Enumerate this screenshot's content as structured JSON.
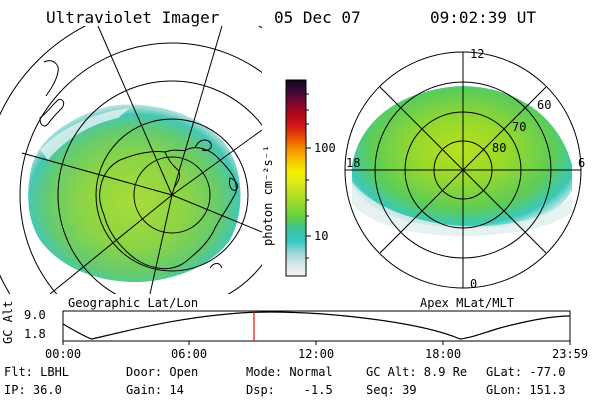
{
  "header": {
    "instrument": "Ultraviolet Imager",
    "date": "05 Dec 07",
    "time": "09:02:39 UT"
  },
  "left_map": {
    "caption": "Geographic Lat/Lon"
  },
  "right_map": {
    "caption": "Apex MLat/MLT",
    "mlt_labels": {
      "top": "12",
      "left": "18",
      "right": "6",
      "bottom": "0"
    },
    "lat_labels": [
      "60",
      "70",
      "80"
    ]
  },
  "colorbar": {
    "unit_label": "photon cm⁻²s⁻¹",
    "ticks": [
      "100",
      "10"
    ],
    "colors": [
      "#f5f5f5",
      "#d8e8e8",
      "#9cd8d6",
      "#38c8c8",
      "#3cc4a0",
      "#5ccc48",
      "#8cd830",
      "#b4e020",
      "#dce81c",
      "#f4f000",
      "#f8c400",
      "#f49000",
      "#e85000",
      "#d41818",
      "#b00818",
      "#7c0830",
      "#40083c",
      "#10081c"
    ]
  },
  "altitude_plot": {
    "ylabel": "GC Alt",
    "ymax_label": "9.0",
    "ymin_label": "1.8",
    "ticks": [
      "00:00",
      "06:00",
      "12:00",
      "18:00",
      "23:59"
    ],
    "marker_color": "#e01010"
  },
  "status": {
    "filter": "Flt: LBHL",
    "ip": "IP: 36.0",
    "door": "Door: Open",
    "gain": "Gain: 14",
    "mode": "Mode: Normal",
    "dsp": "Dsp:    -1.5",
    "gc_alt": "GC Alt: 8.9 Re",
    "seq": "Seq: 39",
    "glat": "GLat: -77.0",
    "glon": "GLon: 151.3"
  }
}
